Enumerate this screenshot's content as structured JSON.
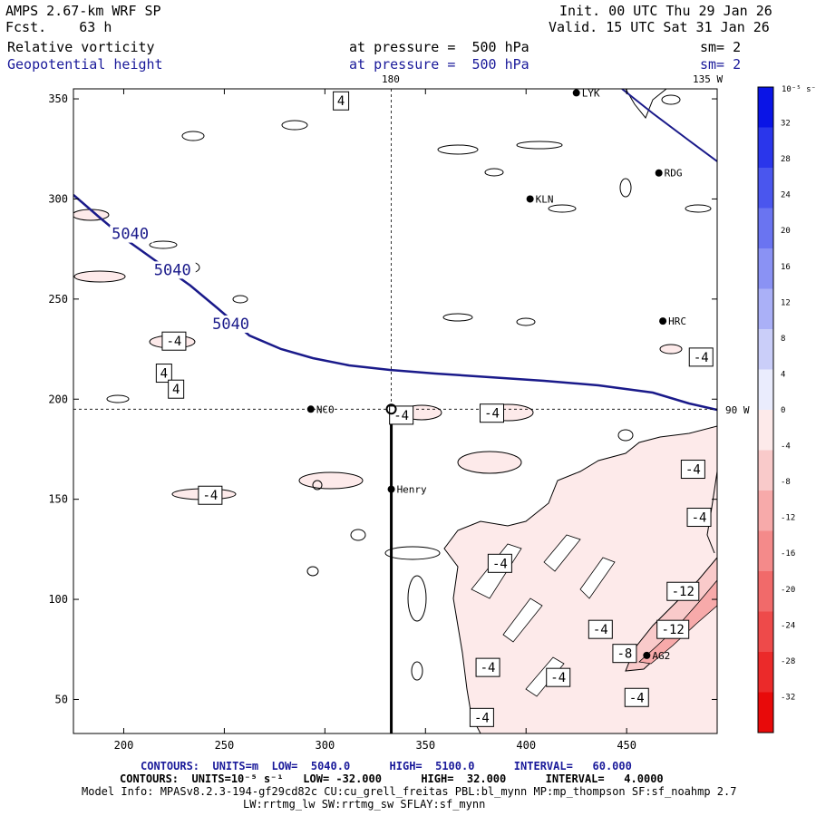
{
  "header": {
    "model": "AMPS 2.67-km WRF SP",
    "forecast": "Fcst.    63 h",
    "init": "Init. 00 UTC Thu 29 Jan 26",
    "valid": "Valid. 15 UTC Sat 31 Jan 26",
    "field1": "Relative vorticity",
    "field1_level": "at pressure =  500 hPa",
    "field1_sm": "sm= 2",
    "field2": "Geopotential height",
    "field2_level": "at pressure =  500 hPa",
    "field2_sm": "sm= 2"
  },
  "map": {
    "top_lon_label_1": "180",
    "top_lon_label_2": "135 W",
    "right_lon_label": "90 W",
    "x_ticks": [
      "200",
      "250",
      "300",
      "350",
      "400",
      "450"
    ],
    "y_ticks": [
      "350",
      "300",
      "250",
      "200",
      "150",
      "100",
      "50"
    ],
    "xlim": [
      175,
      495
    ],
    "ylim": [
      33,
      355
    ],
    "stations": [
      {
        "name": "LYK",
        "x": 425,
        "y": 353
      },
      {
        "name": "RDG",
        "x": 466,
        "y": 313
      },
      {
        "name": "KLN",
        "x": 402,
        "y": 300
      },
      {
        "name": "HRC",
        "x": 468,
        "y": 239
      },
      {
        "name": "NCO",
        "x": 293,
        "y": 195
      },
      {
        "name": "Henry",
        "x": 333,
        "y": 155
      },
      {
        "name": "AG2",
        "x": 460,
        "y": 72
      }
    ],
    "height_labels": [
      {
        "text": "5040",
        "x": 194,
        "y": 280
      },
      {
        "text": "5040",
        "x": 215,
        "y": 262
      },
      {
        "text": "5040",
        "x": 244,
        "y": 235
      }
    ],
    "vorticity_labels": [
      {
        "text": "4",
        "x": 308,
        "y": 349
      },
      {
        "text": "-4",
        "x": 225,
        "y": 229
      },
      {
        "text": "4",
        "x": 220,
        "y": 213
      },
      {
        "text": "4",
        "x": 226,
        "y": 205
      },
      {
        "text": "-4",
        "x": 338,
        "y": 192
      },
      {
        "text": "-4",
        "x": 383,
        "y": 193
      },
      {
        "text": "-4",
        "x": 487,
        "y": 221
      },
      {
        "text": "-4",
        "x": 483,
        "y": 165
      },
      {
        "text": "-4",
        "x": 486,
        "y": 141
      },
      {
        "text": "-4",
        "x": 243,
        "y": 152
      },
      {
        "text": "-4",
        "x": 387,
        "y": 118
      },
      {
        "text": "-12",
        "x": 478,
        "y": 104
      },
      {
        "text": "-12",
        "x": 473,
        "y": 85
      },
      {
        "text": "-4",
        "x": 437,
        "y": 85
      },
      {
        "text": "-8",
        "x": 449,
        "y": 73
      },
      {
        "text": "-4",
        "x": 381,
        "y": 66
      },
      {
        "text": "-4",
        "x": 416,
        "y": 61
      },
      {
        "text": "-4",
        "x": 455,
        "y": 51
      },
      {
        "text": "-4",
        "x": 378,
        "y": 41
      }
    ],
    "cross_x": 333,
    "cross_y": 195
  },
  "colorbar": {
    "unit_label": "10⁻⁵ s⁻¹",
    "labels": [
      "32",
      "28",
      "24",
      "20",
      "16",
      "12",
      "8",
      "4",
      "0",
      "-4",
      "-8",
      "-12",
      "-16",
      "-20",
      "-24",
      "-28",
      "-32"
    ],
    "colors": [
      "#0a14e6",
      "#2a36eb",
      "#4a56ee",
      "#6a74f1",
      "#8a92f4",
      "#aab0f7",
      "#cacef9",
      "#eaecfd",
      "#fdeaea",
      "#f9caca",
      "#f7aaaa",
      "#f48a8a",
      "#f16a6a",
      "#ee4a4a",
      "#eb2a2a",
      "#e80a0a"
    ]
  },
  "footer": {
    "line1_contours": "CONTOURS:  UNITS=m  LOW=  5040.0      HIGH=  5100.0      INTERVAL=   60.000",
    "line2_contours": "CONTOURS:  UNITS=10⁻⁵ s⁻¹   LOW= -32.000      HIGH=  32.000      INTERVAL=   4.0000",
    "line3_info": "Model Info: MPASv8.2.3-194-gf29cd82c CU:cu_grell_freitas PBL:bl_mynn MP:mp_thompson SF:sf_noahmp 2.7",
    "line4_info": "LW:rrtmg_lw SW:rrtmg_sw SFLAY:sf_mynn"
  }
}
